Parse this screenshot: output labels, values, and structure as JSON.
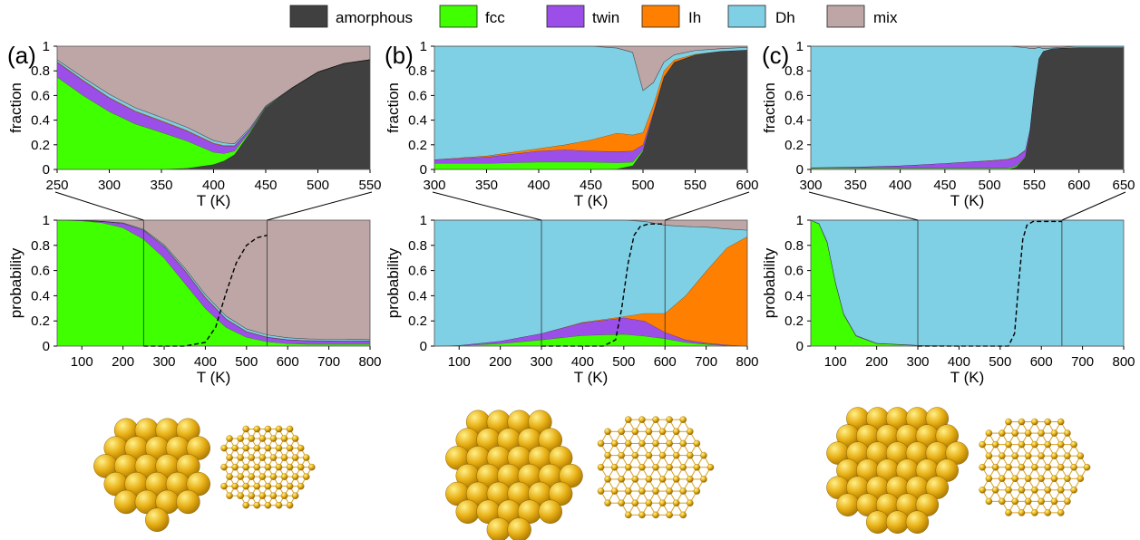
{
  "colors": {
    "amorphous": "#404040",
    "fcc": "#3fff00",
    "twin": "#9b4fe8",
    "Ih": "#ff7f00",
    "Dh": "#7fd0e4",
    "mix": "#bea6a6",
    "atom": "#e8b015"
  },
  "legend": [
    {
      "key": "amorphous",
      "label": "amorphous"
    },
    {
      "key": "fcc",
      "label": "fcc"
    },
    {
      "key": "twin",
      "label": "twin"
    },
    {
      "key": "Ih",
      "label": "Ih"
    },
    {
      "key": "Dh",
      "label": "Dh"
    },
    {
      "key": "mix",
      "label": "mix"
    }
  ],
  "panel_labels": [
    "(a)",
    "(b)",
    "(c)"
  ],
  "chart_data": [
    {
      "panel": "(a)",
      "row": "top",
      "type": "area",
      "ylabel": "fraction",
      "xlabel": "T (K)",
      "xlim": [
        250,
        550
      ],
      "ylim": [
        0,
        1
      ],
      "xticks": [
        250,
        300,
        350,
        400,
        450,
        500,
        550
      ],
      "yticks": [
        0,
        0.2,
        0.4,
        0.6,
        0.8,
        1
      ],
      "x": [
        250,
        275,
        300,
        325,
        350,
        375,
        400,
        410,
        420,
        435,
        450,
        475,
        500,
        525,
        550
      ],
      "stack_order": [
        "amorphous",
        "fcc",
        "twin",
        "Ih",
        "Dh"
      ],
      "series": [
        {
          "key": "amorphous",
          "values": [
            0,
            0,
            0,
            0,
            0.002,
            0.01,
            0.04,
            0.07,
            0.12,
            0.3,
            0.5,
            0.66,
            0.79,
            0.86,
            0.89
          ]
        },
        {
          "key": "fcc",
          "values": [
            0.75,
            0.6,
            0.47,
            0.37,
            0.3,
            0.22,
            0.1,
            0.06,
            0.03,
            0.01,
            0.005,
            0,
            0,
            0,
            0
          ]
        },
        {
          "key": "twin",
          "values": [
            0.12,
            0.12,
            0.11,
            0.1,
            0.09,
            0.08,
            0.07,
            0.06,
            0.04,
            0.015,
            0.005,
            0,
            0,
            0,
            0
          ]
        },
        {
          "key": "Ih",
          "values": [
            0.005,
            0.005,
            0.005,
            0.005,
            0.005,
            0.005,
            0.005,
            0.005,
            0.003,
            0.001,
            0,
            0,
            0,
            0,
            0
          ]
        },
        {
          "key": "Dh",
          "values": [
            0.015,
            0.02,
            0.025,
            0.025,
            0.025,
            0.025,
            0.02,
            0.02,
            0.015,
            0.01,
            0.005,
            0,
            0,
            0,
            0
          ]
        }
      ],
      "remainder": "mix"
    },
    {
      "panel": "(a)",
      "row": "bottom",
      "type": "area",
      "ylabel": "probability",
      "xlabel": "T (K)",
      "xlim": [
        40,
        800
      ],
      "ylim": [
        0,
        1
      ],
      "xticks": [
        100,
        200,
        300,
        400,
        500,
        600,
        700,
        800
      ],
      "yticks": [
        0,
        0.2,
        0.4,
        0.6,
        0.8,
        1
      ],
      "x": [
        40,
        100,
        150,
        200,
        250,
        300,
        350,
        400,
        450,
        500,
        550,
        600,
        650,
        700,
        800
      ],
      "stack_order": [
        "fcc",
        "twin",
        "Ih",
        "Dh"
      ],
      "series": [
        {
          "key": "fcc",
          "values": [
            1,
            0.995,
            0.98,
            0.94,
            0.85,
            0.7,
            0.5,
            0.3,
            0.15,
            0.07,
            0.035,
            0.02,
            0.015,
            0.015,
            0.015
          ]
        },
        {
          "key": "twin",
          "values": [
            0,
            0.003,
            0.01,
            0.035,
            0.07,
            0.09,
            0.1,
            0.085,
            0.065,
            0.045,
            0.035,
            0.03,
            0.028,
            0.026,
            0.025
          ]
        },
        {
          "key": "Ih",
          "values": [
            0,
            0,
            0,
            0,
            0.002,
            0.003,
            0.004,
            0.004,
            0.004,
            0.003,
            0.003,
            0.002,
            0.002,
            0.002,
            0.002
          ]
        },
        {
          "key": "Dh",
          "values": [
            0,
            0,
            0,
            0.003,
            0.005,
            0.01,
            0.015,
            0.02,
            0.02,
            0.018,
            0.016,
            0.014,
            0.012,
            0.011,
            0.01
          ]
        }
      ],
      "remainder": "mix",
      "dashed_curve": {
        "x": [
          250,
          350,
          400,
          425,
          450,
          475,
          500,
          525,
          550
        ],
        "y": [
          0,
          0,
          0.03,
          0.15,
          0.42,
          0.66,
          0.8,
          0.86,
          0.88
        ]
      },
      "window": [
        250,
        550
      ]
    },
    {
      "panel": "(b)",
      "row": "top",
      "type": "area",
      "ylabel": "fraction",
      "xlabel": "T (K)",
      "xlim": [
        300,
        600
      ],
      "ylim": [
        0,
        1
      ],
      "xticks": [
        300,
        350,
        400,
        450,
        500,
        550,
        600
      ],
      "yticks": [
        0,
        0.2,
        0.4,
        0.6,
        0.8,
        1
      ],
      "x": [
        300,
        350,
        400,
        425,
        450,
        475,
        490,
        500,
        510,
        520,
        530,
        550,
        575,
        600
      ],
      "stack_order": [
        "amorphous",
        "fcc",
        "twin",
        "Ih",
        "Dh"
      ],
      "series": [
        {
          "key": "amorphous",
          "values": [
            0,
            0,
            0,
            0,
            0,
            0.005,
            0.03,
            0.15,
            0.45,
            0.75,
            0.87,
            0.93,
            0.96,
            0.97
          ]
        },
        {
          "key": "fcc",
          "values": [
            0.05,
            0.05,
            0.06,
            0.06,
            0.06,
            0.05,
            0.03,
            0.01,
            0,
            0,
            0,
            0,
            0,
            0
          ]
        },
        {
          "key": "twin",
          "values": [
            0.03,
            0.05,
            0.09,
            0.1,
            0.09,
            0.09,
            0.09,
            0.04,
            0.015,
            0,
            0,
            0,
            0,
            0
          ]
        },
        {
          "key": "Ih",
          "values": [
            0,
            0.01,
            0.02,
            0.04,
            0.09,
            0.15,
            0.13,
            0.1,
            0.06,
            0.05,
            0.02,
            0.005,
            0,
            0
          ]
        },
        {
          "key": "Dh",
          "values": [
            0.92,
            0.89,
            0.83,
            0.8,
            0.76,
            0.69,
            0.67,
            0.34,
            0.18,
            0.07,
            0.04,
            0.03,
            0.02,
            0.02
          ]
        }
      ],
      "remainder": "mix"
    },
    {
      "panel": "(b)",
      "row": "bottom",
      "type": "area",
      "ylabel": "probability",
      "xlabel": "T (K)",
      "xlim": [
        40,
        800
      ],
      "ylim": [
        0,
        1
      ],
      "xticks": [
        100,
        200,
        300,
        400,
        500,
        600,
        700,
        800
      ],
      "yticks": [
        0,
        0.2,
        0.4,
        0.6,
        0.8,
        1
      ],
      "x": [
        40,
        100,
        200,
        300,
        400,
        500,
        550,
        600,
        650,
        700,
        750,
        800
      ],
      "stack_order": [
        "fcc",
        "twin",
        "Ih",
        "Dh"
      ],
      "series": [
        {
          "key": "fcc",
          "values": [
            0,
            0.003,
            0.02,
            0.05,
            0.085,
            0.095,
            0.08,
            0.06,
            0.03,
            0.015,
            0.005,
            0
          ]
        },
        {
          "key": "twin",
          "values": [
            0,
            0.003,
            0.02,
            0.05,
            0.1,
            0.13,
            0.12,
            0.05,
            0.02,
            0.01,
            0.005,
            0
          ]
        },
        {
          "key": "Ih",
          "values": [
            0,
            0,
            0,
            0,
            0.005,
            0.01,
            0.06,
            0.15,
            0.35,
            0.57,
            0.77,
            0.87
          ]
        },
        {
          "key": "Dh",
          "values": [
            1,
            0.994,
            0.96,
            0.9,
            0.81,
            0.765,
            0.73,
            0.7,
            0.55,
            0.35,
            0.15,
            0.05
          ]
        }
      ],
      "remainder": "mix",
      "dashed_curve": {
        "x": [
          300,
          450,
          480,
          495,
          510,
          525,
          540,
          560,
          600
        ],
        "y": [
          0,
          0,
          0.05,
          0.3,
          0.65,
          0.88,
          0.95,
          0.97,
          0.97
        ]
      },
      "window": [
        300,
        600
      ]
    },
    {
      "panel": "(c)",
      "row": "top",
      "type": "area",
      "ylabel": "fraction",
      "xlabel": "T (K)",
      "xlim": [
        300,
        650
      ],
      "ylim": [
        0,
        1
      ],
      "xticks": [
        300,
        350,
        400,
        450,
        500,
        550,
        600,
        650
      ],
      "yticks": [
        0,
        0.2,
        0.4,
        0.6,
        0.8,
        1
      ],
      "x": [
        300,
        350,
        400,
        450,
        500,
        520,
        530,
        540,
        545,
        550,
        555,
        560,
        570,
        580,
        600,
        650
      ],
      "stack_order": [
        "amorphous",
        "fcc",
        "twin",
        "Ih",
        "Dh"
      ],
      "series": [
        {
          "key": "amorphous",
          "values": [
            0,
            0,
            0,
            0,
            0,
            0,
            0.02,
            0.1,
            0.3,
            0.65,
            0.9,
            0.96,
            0.98,
            0.985,
            0.99,
            0.99
          ]
        },
        {
          "key": "fcc",
          "values": [
            0.01,
            0.01,
            0.01,
            0.01,
            0.01,
            0.01,
            0.01,
            0.005,
            0,
            0,
            0,
            0,
            0,
            0,
            0,
            0
          ]
        },
        {
          "key": "twin",
          "values": [
            0.005,
            0.01,
            0.02,
            0.04,
            0.06,
            0.07,
            0.07,
            0.05,
            0.02,
            0,
            0,
            0,
            0,
            0,
            0,
            0
          ]
        },
        {
          "key": "Ih",
          "values": [
            0,
            0,
            0,
            0,
            0.003,
            0.005,
            0.005,
            0.003,
            0.002,
            0,
            0,
            0,
            0,
            0,
            0,
            0
          ]
        },
        {
          "key": "Dh",
          "values": [
            0.985,
            0.98,
            0.97,
            0.95,
            0.927,
            0.915,
            0.89,
            0.83,
            0.66,
            0.33,
            0.09,
            0.02,
            0.005,
            0.005,
            0.01,
            0.01
          ]
        }
      ],
      "remainder": "mix"
    },
    {
      "panel": "(c)",
      "row": "bottom",
      "type": "area",
      "ylabel": "probability",
      "xlabel": "T (K)",
      "xlim": [
        40,
        800
      ],
      "ylim": [
        0,
        1
      ],
      "xticks": [
        100,
        200,
        300,
        400,
        500,
        600,
        700,
        800
      ],
      "yticks": [
        0,
        0.2,
        0.4,
        0.6,
        0.8,
        1
      ],
      "x": [
        40,
        60,
        80,
        100,
        120,
        150,
        200,
        300,
        500,
        800
      ],
      "stack_order": [
        "fcc",
        "twin",
        "Ih",
        "Dh"
      ],
      "series": [
        {
          "key": "fcc",
          "values": [
            1,
            0.97,
            0.82,
            0.5,
            0.25,
            0.08,
            0.02,
            0.005,
            0,
            0
          ]
        },
        {
          "key": "twin",
          "values": [
            0,
            0.005,
            0.01,
            0.01,
            0.008,
            0.005,
            0.003,
            0.002,
            0,
            0
          ]
        },
        {
          "key": "Ih",
          "values": [
            0,
            0,
            0,
            0,
            0,
            0,
            0,
            0,
            0,
            0
          ]
        },
        {
          "key": "Dh",
          "values": [
            0,
            0.025,
            0.17,
            0.49,
            0.742,
            0.915,
            0.977,
            0.993,
            1,
            1
          ]
        }
      ],
      "remainder": "mix",
      "dashed_curve": {
        "x": [
          300,
          520,
          535,
          545,
          555,
          565,
          580,
          650
        ],
        "y": [
          0,
          0,
          0.1,
          0.5,
          0.85,
          0.96,
          0.99,
          0.99
        ]
      },
      "window": [
        300,
        650
      ]
    }
  ],
  "structures": [
    {
      "panel": "(a)",
      "atom_color": "#e8b015"
    },
    {
      "panel": "(b)",
      "atom_color": "#e8b015"
    },
    {
      "panel": "(c)",
      "atom_color": "#e8b015"
    }
  ]
}
